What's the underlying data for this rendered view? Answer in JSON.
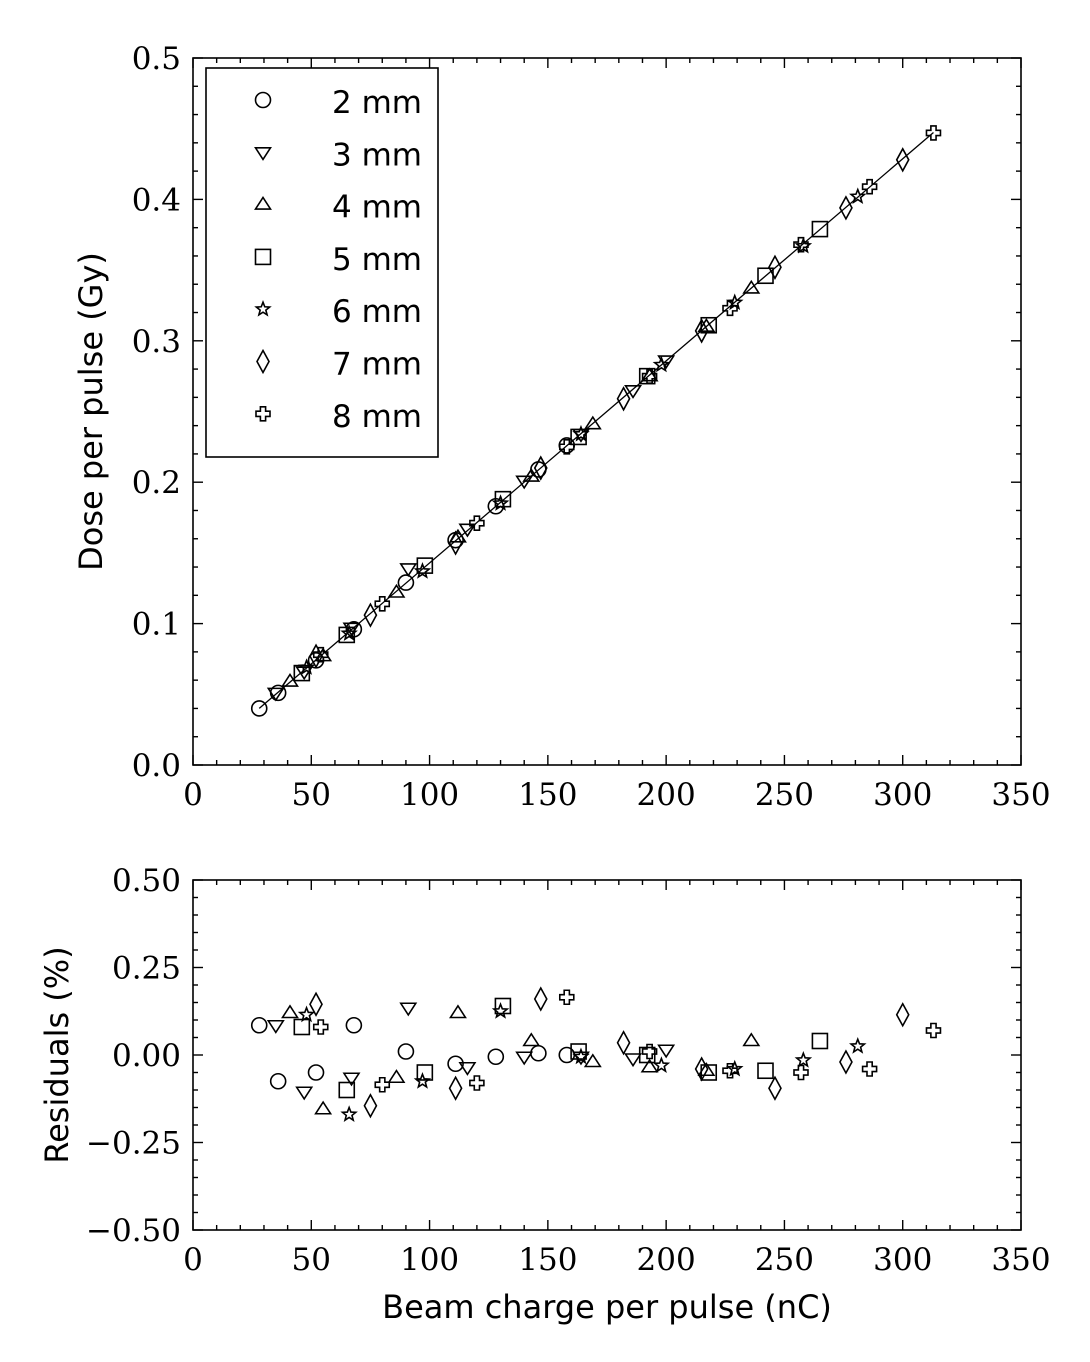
{
  "chart_data": [
    {
      "type": "scatter",
      "panel": "top",
      "title": "",
      "xlabel": "",
      "ylabel": "Dose per pulse (Gy)",
      "xlim": [
        0,
        350
      ],
      "ylim": [
        0.0,
        0.5
      ],
      "xticks": [
        0,
        50,
        100,
        150,
        200,
        250,
        300,
        350
      ],
      "yticks": [
        0.0,
        0.1,
        0.2,
        0.3,
        0.4,
        0.5
      ],
      "xtick_labels": [
        "0",
        "50",
        "100",
        "150",
        "200",
        "250",
        "300",
        "350"
      ],
      "ytick_labels": [
        "0.0",
        "0.1",
        "0.2",
        "0.3",
        "0.4",
        "0.5"
      ],
      "legend_position": "top-left",
      "fit_line": {
        "slope": 0.001429,
        "x_range": [
          28,
          313
        ]
      },
      "series": [
        {
          "name": "2 mm",
          "marker": "circle",
          "x": [
            28,
            36,
            52,
            68,
            90,
            111,
            128,
            146,
            158
          ],
          "y": [
            0.04,
            0.051,
            0.074,
            0.096,
            0.129,
            0.159,
            0.183,
            0.209,
            0.226
          ]
        },
        {
          "name": "3 mm",
          "marker": "triangle-down",
          "x": [
            35,
            47,
            67,
            91,
            116,
            140,
            164,
            186,
            200
          ],
          "y": [
            0.051,
            0.066,
            0.097,
            0.139,
            0.167,
            0.201,
            0.234,
            0.265,
            0.286
          ]
        },
        {
          "name": "4 mm",
          "marker": "triangle-up",
          "x": [
            41,
            55,
            86,
            112,
            143,
            169,
            193,
            217,
            236
          ],
          "y": [
            0.059,
            0.077,
            0.122,
            0.161,
            0.204,
            0.241,
            0.275,
            0.31,
            0.337
          ]
        },
        {
          "name": "5 mm",
          "marker": "square",
          "x": [
            46,
            65,
            98,
            131,
            163,
            192,
            218,
            242,
            265
          ],
          "y": [
            0.065,
            0.092,
            0.141,
            0.188,
            0.232,
            0.275,
            0.311,
            0.346,
            0.379
          ]
        },
        {
          "name": "6 mm",
          "marker": "star",
          "x": [
            48,
            66,
            97,
            130,
            164,
            198,
            229,
            258,
            281
          ],
          "y": [
            0.069,
            0.093,
            0.137,
            0.185,
            0.234,
            0.283,
            0.327,
            0.367,
            0.402
          ]
        },
        {
          "name": "7 mm",
          "marker": "diamond",
          "x": [
            52,
            75,
            111,
            147,
            182,
            215,
            246,
            276,
            300
          ],
          "y": [
            0.077,
            0.106,
            0.157,
            0.21,
            0.259,
            0.307,
            0.352,
            0.394,
            0.428
          ]
        },
        {
          "name": "8 mm",
          "marker": "plus",
          "x": [
            54,
            80,
            120,
            158,
            193,
            227,
            257,
            286,
            313
          ],
          "y": [
            0.078,
            0.114,
            0.171,
            0.225,
            0.275,
            0.323,
            0.368,
            0.409,
            0.447
          ]
        }
      ]
    },
    {
      "type": "scatter",
      "panel": "bottom",
      "title": "",
      "xlabel": "Beam charge per pulse (nC)",
      "ylabel": "Residuals (%)",
      "xlim": [
        0,
        350
      ],
      "ylim": [
        -0.5,
        0.5
      ],
      "xticks": [
        0,
        50,
        100,
        150,
        200,
        250,
        300,
        350
      ],
      "yticks": [
        -0.5,
        -0.25,
        0.0,
        0.25,
        0.5
      ],
      "xtick_labels": [
        "0",
        "50",
        "100",
        "150",
        "200",
        "250",
        "300",
        "350"
      ],
      "ytick_labels": [
        "−0.50",
        "−0.25",
        "0.00",
        "0.25",
        "0.50"
      ],
      "series": [
        {
          "name": "2 mm",
          "marker": "circle",
          "x": [
            28,
            36,
            52,
            68,
            90,
            111,
            128,
            146,
            158
          ],
          "y": [
            0.085,
            -0.075,
            -0.05,
            0.085,
            0.01,
            -0.025,
            -0.005,
            0.005,
            0.0
          ]
        },
        {
          "name": "3 mm",
          "marker": "triangle-down",
          "x": [
            35,
            47,
            67,
            91,
            116,
            140,
            164,
            186,
            200
          ],
          "y": [
            0.085,
            -0.105,
            -0.065,
            0.135,
            -0.035,
            -0.005,
            -0.005,
            -0.01,
            0.015
          ]
        },
        {
          "name": "4 mm",
          "marker": "triangle-up",
          "x": [
            41,
            55,
            86,
            112,
            143,
            169,
            193,
            217,
            236
          ],
          "y": [
            0.12,
            -0.155,
            -0.065,
            0.12,
            0.04,
            -0.02,
            -0.035,
            -0.045,
            0.04
          ]
        },
        {
          "name": "5 mm",
          "marker": "square",
          "x": [
            46,
            65,
            98,
            131,
            163,
            192,
            218,
            242,
            265
          ],
          "y": [
            0.08,
            -0.1,
            -0.05,
            0.14,
            0.01,
            0.0,
            -0.05,
            -0.045,
            0.04
          ]
        },
        {
          "name": "6 mm",
          "marker": "star",
          "x": [
            48,
            66,
            97,
            130,
            164,
            198,
            229,
            258,
            281
          ],
          "y": [
            0.115,
            -0.17,
            -0.075,
            0.125,
            -0.005,
            -0.03,
            -0.04,
            -0.015,
            0.025
          ]
        },
        {
          "name": "7 mm",
          "marker": "diamond",
          "x": [
            52,
            75,
            111,
            147,
            182,
            215,
            246,
            276,
            300
          ],
          "y": [
            0.145,
            -0.145,
            -0.095,
            0.16,
            0.035,
            -0.04,
            -0.095,
            -0.02,
            0.115
          ]
        },
        {
          "name": "8 mm",
          "marker": "plus",
          "x": [
            54,
            80,
            120,
            158,
            193,
            227,
            257,
            286,
            313
          ],
          "y": [
            0.08,
            -0.085,
            -0.08,
            0.165,
            0.01,
            -0.045,
            -0.05,
            -0.04,
            0.07
          ]
        }
      ]
    }
  ]
}
